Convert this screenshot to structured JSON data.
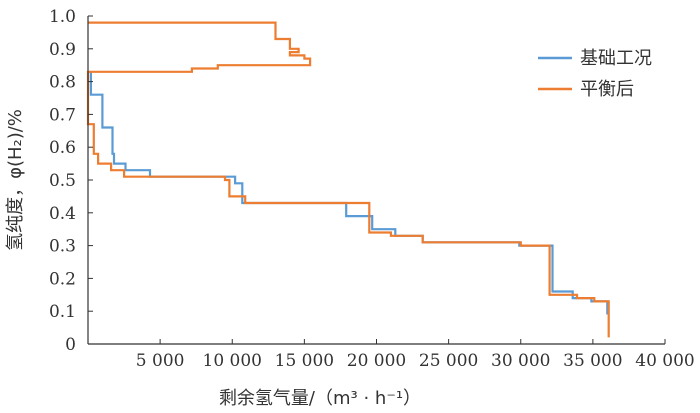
{
  "chart_data": {
    "type": "line",
    "xlabel": "剩余氢气量/（m³ · h⁻¹）",
    "ylabel": "氢纯度，φ(H₂)/%",
    "xlim": [
      0,
      40000
    ],
    "ylim": [
      0,
      1.0
    ],
    "x_tick_labels": [
      "5 000",
      "10 000",
      "15 000",
      "20 000",
      "25 000",
      "30 000",
      "35 000",
      "40 000"
    ],
    "x_tick_values": [
      5000,
      10000,
      15000,
      20000,
      25000,
      30000,
      35000,
      40000
    ],
    "y_tick_labels": [
      "0",
      "0.1",
      "0.2",
      "0.3",
      "0.4",
      "0.5",
      "0.6",
      "0.7",
      "0.8",
      "0.9",
      "1.0"
    ],
    "y_tick_values": [
      0,
      0.1,
      0.2,
      0.3,
      0.4,
      0.5,
      0.6,
      0.7,
      0.8,
      0.9,
      1.0
    ],
    "legend_position": "top-right",
    "series": [
      {
        "name": "基础工况",
        "color": "#5b9bd5",
        "points": [
          [
            36000,
            0.09
          ],
          [
            36000,
            0.13
          ],
          [
            34900,
            0.13
          ],
          [
            34900,
            0.14
          ],
          [
            33600,
            0.14
          ],
          [
            33600,
            0.16
          ],
          [
            32200,
            0.16
          ],
          [
            32200,
            0.3
          ],
          [
            29900,
            0.3
          ],
          [
            29900,
            0.31
          ],
          [
            23200,
            0.31
          ],
          [
            23200,
            0.33
          ],
          [
            21300,
            0.33
          ],
          [
            21300,
            0.35
          ],
          [
            19700,
            0.35
          ],
          [
            19700,
            0.39
          ],
          [
            17900,
            0.39
          ],
          [
            17900,
            0.43
          ],
          [
            10700,
            0.43
          ],
          [
            10700,
            0.49
          ],
          [
            10200,
            0.49
          ],
          [
            10200,
            0.51
          ],
          [
            4300,
            0.51
          ],
          [
            4300,
            0.53
          ],
          [
            2600,
            0.53
          ],
          [
            2600,
            0.55
          ],
          [
            1800,
            0.55
          ],
          [
            1800,
            0.58
          ],
          [
            1700,
            0.58
          ],
          [
            1700,
            0.66
          ],
          [
            1000,
            0.66
          ],
          [
            1000,
            0.76
          ],
          [
            200,
            0.76
          ],
          [
            200,
            0.83
          ]
        ]
      },
      {
        "name": "平衡后",
        "color": "#ed7d31",
        "points": [
          [
            36100,
            0.02
          ],
          [
            36100,
            0.13
          ],
          [
            35100,
            0.13
          ],
          [
            35100,
            0.14
          ],
          [
            33900,
            0.14
          ],
          [
            33900,
            0.15
          ],
          [
            32000,
            0.15
          ],
          [
            32000,
            0.3
          ],
          [
            30000,
            0.3
          ],
          [
            30000,
            0.31
          ],
          [
            23200,
            0.31
          ],
          [
            23200,
            0.33
          ],
          [
            21000,
            0.33
          ],
          [
            21000,
            0.34
          ],
          [
            19500,
            0.34
          ],
          [
            19500,
            0.43
          ],
          [
            10900,
            0.43
          ],
          [
            10900,
            0.45
          ],
          [
            9800,
            0.45
          ],
          [
            9800,
            0.5
          ],
          [
            9500,
            0.5
          ],
          [
            9500,
            0.51
          ],
          [
            2500,
            0.51
          ],
          [
            2500,
            0.53
          ],
          [
            1600,
            0.53
          ],
          [
            1600,
            0.55
          ],
          [
            700,
            0.55
          ],
          [
            700,
            0.58
          ],
          [
            400,
            0.58
          ],
          [
            400,
            0.67
          ],
          [
            0,
            0.67
          ],
          [
            0,
            0.83
          ],
          [
            7200,
            0.83
          ],
          [
            7200,
            0.84
          ],
          [
            9000,
            0.84
          ],
          [
            9000,
            0.85
          ],
          [
            15400,
            0.85
          ],
          [
            15400,
            0.87
          ],
          [
            15000,
            0.87
          ],
          [
            15000,
            0.88
          ],
          [
            14000,
            0.88
          ],
          [
            14000,
            0.89
          ],
          [
            14600,
            0.89
          ],
          [
            14600,
            0.9
          ],
          [
            14000,
            0.9
          ],
          [
            14000,
            0.93
          ],
          [
            13000,
            0.93
          ],
          [
            13000,
            0.98
          ],
          [
            0,
            0.98
          ]
        ]
      }
    ]
  }
}
